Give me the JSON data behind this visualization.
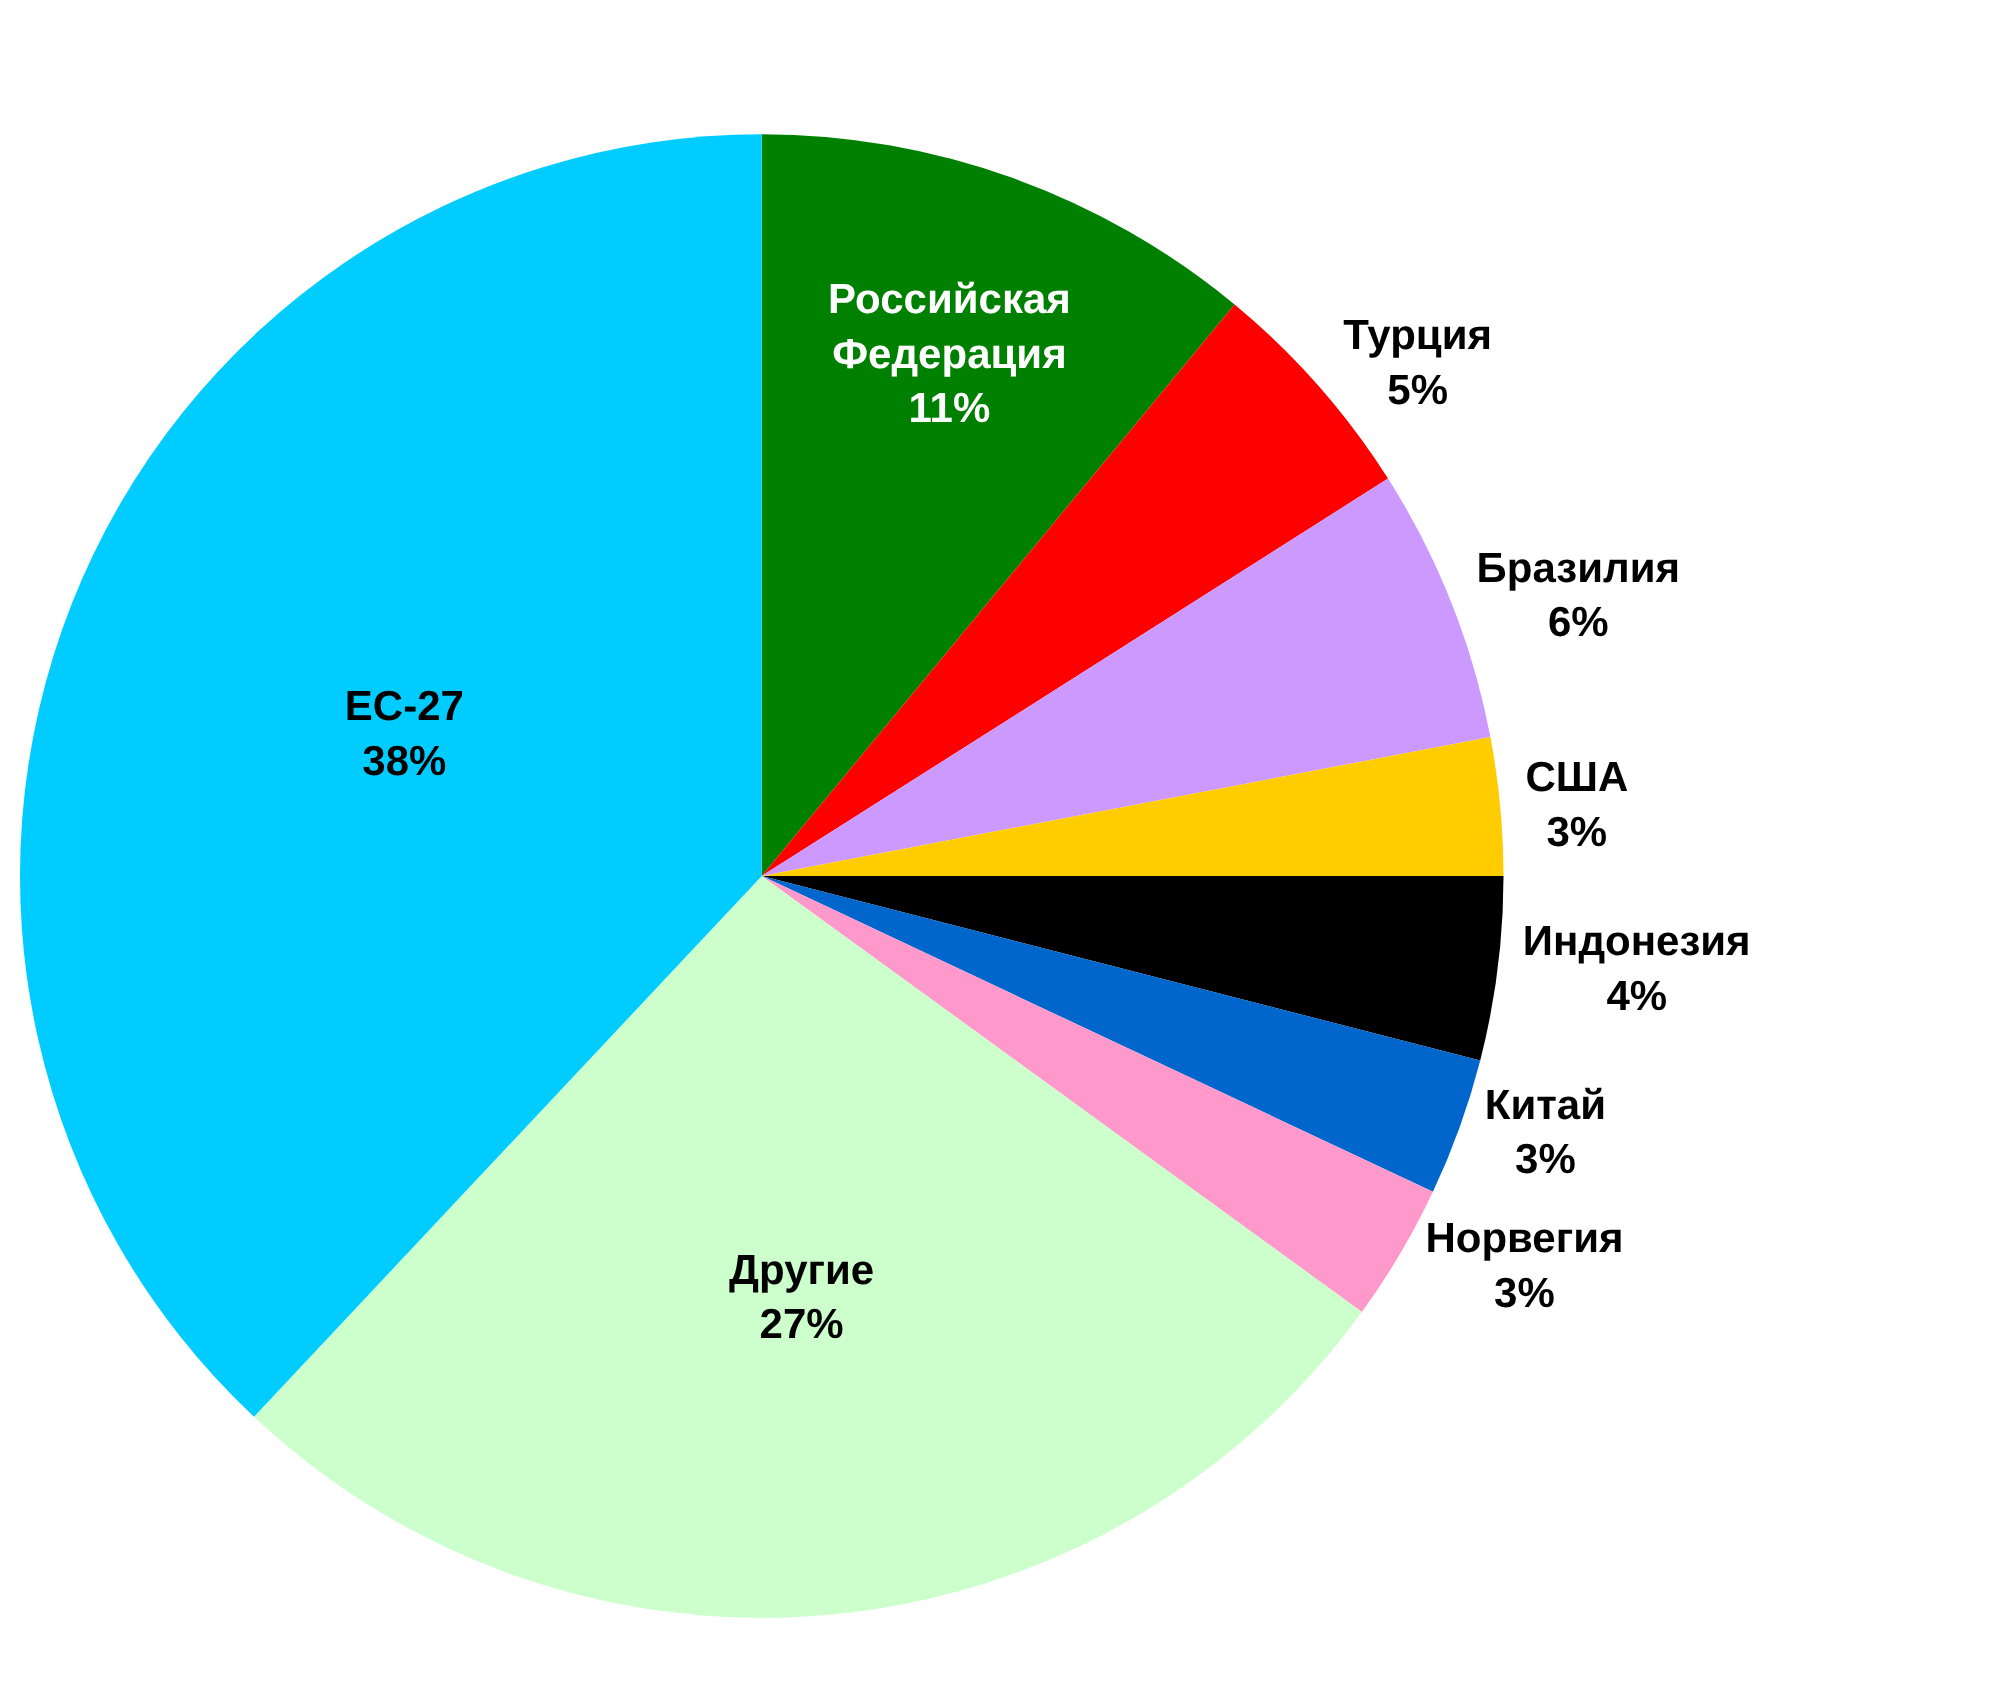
{
  "chart_data": {
    "type": "pie",
    "categories": [
      "Российская Федерация",
      "Турция",
      "Бразилия",
      "США",
      "Индонезия",
      "Китай",
      "Норвегия",
      "Другие",
      "ЕС-27"
    ],
    "values": [
      11,
      5,
      6,
      3,
      4,
      3,
      3,
      27,
      38
    ],
    "value_labels": [
      "11%",
      "5%",
      "6%",
      "3%",
      "4%",
      "3%",
      "3%",
      "27%",
      "38%"
    ],
    "colors": [
      "#008000",
      "#ff0000",
      "#cc99ff",
      "#ffcc00",
      "#000000",
      "#0066cc",
      "#ff99cc",
      "#ccffcc",
      "#00ccff"
    ],
    "legend": false
  }
}
